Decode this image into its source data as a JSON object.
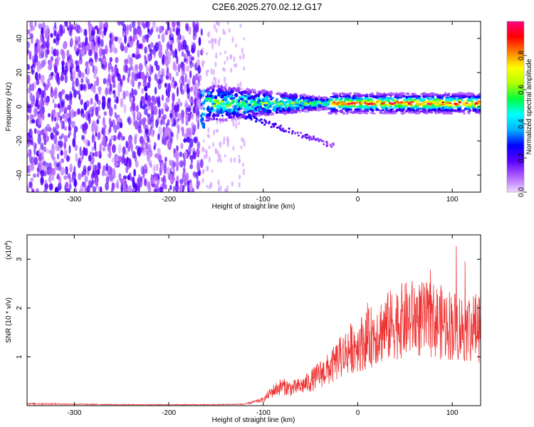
{
  "title": "C2E6.2025.270.02.12.G17",
  "top_panel": {
    "xlabel": "Height of straight line (km)",
    "ylabel": "Frequency (Hz)",
    "xticks": [
      "-300",
      "-200",
      "-100",
      "0",
      "100"
    ],
    "yticks": [
      "40",
      "20",
      "0",
      "-20",
      "-40"
    ],
    "colorbar": {
      "label": "Normalized spectral amplitude",
      "ticks": [
        "0.0",
        "0.2",
        "0.4",
        "0.6",
        "0.8"
      ],
      "colors": [
        "#f0d8ff",
        "#b060ff",
        "#5a00ff",
        "#0000ff",
        "#00b0ff",
        "#00ffff",
        "#00ff40",
        "#b0ff00",
        "#ffff00",
        "#ff8000",
        "#ff0000",
        "#ff0080"
      ]
    }
  },
  "bottom_panel": {
    "xlabel": "Height of straight line (km)",
    "ylabel": "SNR (10 * v/v)",
    "scale_label": "(x10",
    "scale_exp": "4",
    "scale_close": ")",
    "xticks": [
      "-300",
      "-200",
      "-100",
      "0",
      "100"
    ],
    "yticks": [
      "3",
      "2",
      "1"
    ],
    "line_color": "#ee3333"
  },
  "chart_data": [
    {
      "type": "heatmap",
      "title": "C2E6.2025.270.02.12.G17",
      "xlabel": "Height of straight line (km)",
      "ylabel": "Frequency (Hz)",
      "xlim": [
        -350,
        130
      ],
      "ylim": [
        -50,
        50
      ],
      "colorbar_range": [
        0,
        1
      ],
      "description_points": [
        {
          "x_range": [
            -350,
            -165
          ],
          "freq_range": [
            -50,
            50
          ],
          "amplitude": 0.15
        },
        {
          "x_range": [
            -160,
            -30
          ],
          "freq_center": 2,
          "amplitude": 0.4
        },
        {
          "x_range": [
            -30,
            130
          ],
          "freq_center": 2,
          "amplitude": 0.85
        }
      ]
    },
    {
      "type": "line",
      "title": "",
      "xlabel": "Height of straight line (km)",
      "ylabel": "SNR (10 * v/v)",
      "xlim": [
        -350,
        130
      ],
      "ylim": [
        0,
        3.5
      ],
      "y_scale": 10000,
      "series": [
        {
          "name": "SNR",
          "x": [
            -350,
            -300,
            -250,
            -200,
            -150,
            -120,
            -100,
            -90,
            -80,
            -70,
            -60,
            -50,
            -40,
            -30,
            -20,
            -10,
            0,
            10,
            20,
            30,
            40,
            50,
            60,
            70,
            80,
            90,
            100,
            110,
            120,
            130
          ],
          "y": [
            0.04,
            0.03,
            0.02,
            0.02,
            0.02,
            0.03,
            0.12,
            0.3,
            0.4,
            0.35,
            0.4,
            0.5,
            0.65,
            0.75,
            0.95,
            1.15,
            1.25,
            1.35,
            1.5,
            1.6,
            1.7,
            1.75,
            1.8,
            1.75,
            1.75,
            1.7,
            1.65,
            1.6,
            1.6,
            1.6
          ]
        }
      ]
    }
  ]
}
